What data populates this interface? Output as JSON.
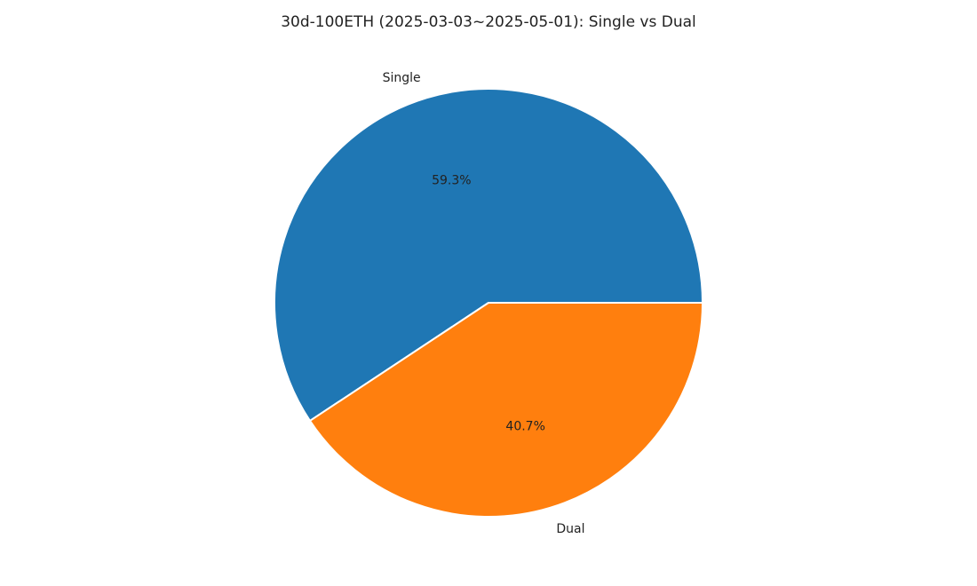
{
  "chart_data": {
    "type": "pie",
    "title": "30d-100ETH (2025-03-03~2025-05-01): Single vs Dual",
    "categories": [
      "Single",
      "Dual"
    ],
    "values": [
      59.3,
      40.7
    ],
    "value_labels": [
      "59.3%",
      "40.7%"
    ],
    "colors": [
      "#1f77b4",
      "#ff7f0e"
    ],
    "start_angle_deg": 0,
    "direction": "counterclockwise",
    "legend": "none"
  }
}
